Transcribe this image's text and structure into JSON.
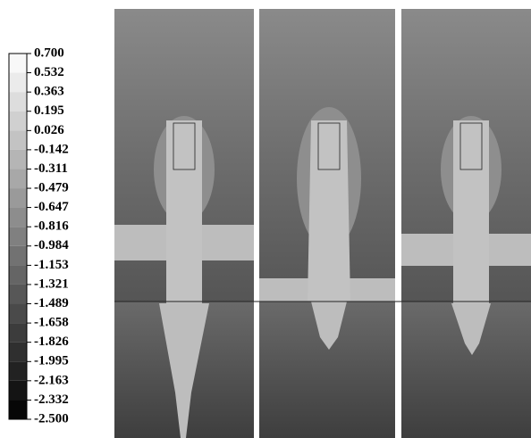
{
  "chart_data": {
    "type": "contour",
    "colorbar": {
      "lim": [
        -2.5,
        0.7
      ],
      "colormap": [
        "#000000",
        "#ffffff"
      ],
      "ticks": [
        {
          "value": 0.7,
          "label": "0.700"
        },
        0.532,
        0.363,
        0.195,
        0.026,
        -0.142,
        -0.311,
        -0.479,
        -0.647,
        -0.816,
        -0.984,
        -1.153,
        -1.321,
        -1.489,
        -1.658,
        -1.826,
        -1.995,
        -2.163,
        -2.332,
        {
          "value": -2.5,
          "label": "-2.500"
        }
      ]
    }
  }
}
